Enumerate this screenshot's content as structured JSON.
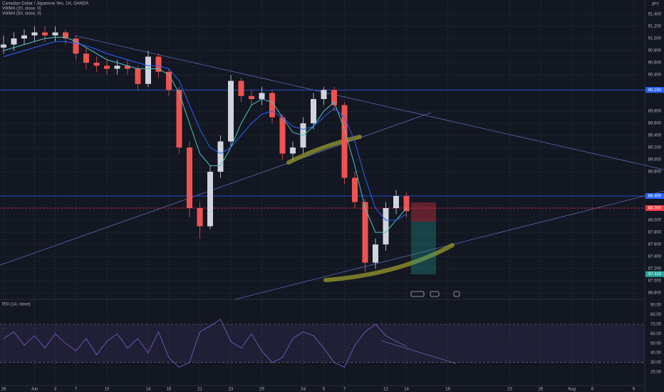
{
  "chart_data": {
    "type": "candlestick",
    "title": "Canadian Dollar / Japanese Yen, 1H, OANDA",
    "currency": "JPY",
    "indicators": [
      "VWMA (20, close, 0)",
      "VWMA (50, close, 0)"
    ],
    "categories": [
      "28",
      null,
      null,
      "Jun",
      null,
      "3",
      null,
      "7",
      null,
      null,
      "10",
      null,
      null,
      null,
      "14",
      null,
      "16",
      null,
      null,
      "21",
      null,
      null,
      "23",
      null,
      null,
      "29",
      null,
      null,
      null,
      "Jul",
      null,
      "5",
      null,
      "7",
      null,
      null,
      null,
      "12",
      null,
      "14",
      null,
      null,
      null,
      "19",
      null,
      null,
      null,
      null,
      null,
      "23",
      null,
      null,
      "26",
      null,
      null,
      "Aug",
      null,
      "6",
      null,
      null,
      null,
      "9"
    ],
    "candles": [
      {
        "open": 90.85,
        "high": 91.05,
        "low": 90.75,
        "close": 90.9
      },
      {
        "open": 90.9,
        "high": 91.1,
        "low": 90.8,
        "close": 91.0
      },
      {
        "open": 91.0,
        "high": 91.15,
        "low": 90.9,
        "close": 91.05
      },
      {
        "open": 91.05,
        "high": 91.2,
        "low": 90.95,
        "close": 91.1
      },
      {
        "open": 91.1,
        "high": 91.2,
        "low": 90.95,
        "close": 91.05
      },
      {
        "open": 91.05,
        "high": 91.2,
        "low": 90.95,
        "close": 91.1
      },
      {
        "open": 91.1,
        "high": 91.15,
        "low": 90.9,
        "close": 91.0
      },
      {
        "open": 91.0,
        "high": 91.05,
        "low": 90.65,
        "close": 90.75
      },
      {
        "open": 90.75,
        "high": 90.85,
        "low": 90.5,
        "close": 90.6
      },
      {
        "open": 90.6,
        "high": 90.7,
        "low": 90.45,
        "close": 90.55
      },
      {
        "open": 90.55,
        "high": 90.65,
        "low": 90.4,
        "close": 90.5
      },
      {
        "open": 90.5,
        "high": 90.65,
        "low": 90.4,
        "close": 90.55
      },
      {
        "open": 90.55,
        "high": 90.65,
        "low": 90.4,
        "close": 90.5
      },
      {
        "open": 90.5,
        "high": 90.55,
        "low": 90.15,
        "close": 90.25
      },
      {
        "open": 90.25,
        "high": 90.8,
        "low": 90.2,
        "close": 90.7
      },
      {
        "open": 90.7,
        "high": 90.75,
        "low": 90.35,
        "close": 90.45
      },
      {
        "open": 90.45,
        "high": 90.5,
        "low": 90.05,
        "close": 90.15
      },
      {
        "open": 90.15,
        "high": 90.2,
        "low": 89.1,
        "close": 89.2
      },
      {
        "open": 89.2,
        "high": 89.3,
        "low": 88.05,
        "close": 88.2
      },
      {
        "open": 88.2,
        "high": 88.3,
        "low": 87.7,
        "close": 87.9
      },
      {
        "open": 87.9,
        "high": 88.9,
        "low": 87.85,
        "close": 88.8
      },
      {
        "open": 88.8,
        "high": 89.4,
        "low": 88.7,
        "close": 89.3
      },
      {
        "open": 89.3,
        "high": 90.4,
        "low": 89.2,
        "close": 90.3
      },
      {
        "open": 90.3,
        "high": 90.35,
        "low": 89.95,
        "close": 90.05
      },
      {
        "open": 90.05,
        "high": 90.15,
        "low": 89.9,
        "close": 90.0
      },
      {
        "open": 90.0,
        "high": 90.2,
        "low": 89.9,
        "close": 90.1
      },
      {
        "open": 90.1,
        "high": 90.15,
        "low": 89.6,
        "close": 89.7
      },
      {
        "open": 89.7,
        "high": 89.75,
        "low": 89.0,
        "close": 89.1
      },
      {
        "open": 89.1,
        "high": 89.3,
        "low": 89.0,
        "close": 89.2
      },
      {
        "open": 89.2,
        "high": 89.7,
        "low": 89.1,
        "close": 89.6
      },
      {
        "open": 89.6,
        "high": 90.1,
        "low": 89.5,
        "close": 90.0
      },
      {
        "open": 90.0,
        "high": 90.2,
        "low": 89.9,
        "close": 90.15
      },
      {
        "open": 90.15,
        "high": 90.2,
        "low": 89.8,
        "close": 89.9
      },
      {
        "open": 89.9,
        "high": 89.95,
        "low": 88.6,
        "close": 88.7
      },
      {
        "open": 88.7,
        "high": 88.8,
        "low": 88.2,
        "close": 88.3
      },
      {
        "open": 88.3,
        "high": 88.35,
        "low": 87.15,
        "close": 87.3
      },
      {
        "open": 87.3,
        "high": 87.7,
        "low": 87.2,
        "close": 87.6
      },
      {
        "open": 87.6,
        "high": 88.3,
        "low": 87.5,
        "close": 88.2
      },
      {
        "open": 88.2,
        "high": 88.5,
        "low": 88.1,
        "close": 88.4
      },
      {
        "open": 88.4,
        "high": 88.45,
        "low": 88.05,
        "close": 88.15
      },
      null,
      null,
      null,
      null,
      null,
      null,
      null,
      null,
      null,
      null,
      null,
      null,
      null,
      null,
      null,
      null,
      null,
      null,
      null,
      null,
      null,
      null
    ],
    "series": [
      {
        "name": "VWMA (20, close, 0)",
        "color": "#4fc3c7",
        "values": [
          90.8,
          90.85,
          90.9,
          90.95,
          91.0,
          91.02,
          91.02,
          90.95,
          90.85,
          90.75,
          90.65,
          90.6,
          90.55,
          90.5,
          90.5,
          90.5,
          90.4,
          90.1,
          89.6,
          89.1,
          88.9,
          88.9,
          89.2,
          89.6,
          89.9,
          90.0,
          89.95,
          89.7,
          89.45,
          89.4,
          89.55,
          89.8,
          89.95,
          89.5,
          88.9,
          88.2,
          87.8,
          87.8,
          88.0,
          88.2,
          null,
          null,
          null,
          null,
          null,
          null,
          null,
          null,
          null,
          null,
          null,
          null,
          null,
          null,
          null,
          null,
          null,
          null,
          null,
          null,
          null,
          null
        ]
      },
      {
        "name": "VWMA (50, close, 0)",
        "color": "#2962ff",
        "values": [
          90.7,
          90.75,
          90.8,
          90.85,
          90.9,
          90.95,
          90.95,
          90.92,
          90.88,
          90.82,
          90.75,
          90.7,
          90.65,
          90.6,
          90.55,
          90.55,
          90.5,
          90.3,
          89.9,
          89.5,
          89.2,
          89.1,
          89.2,
          89.4,
          89.6,
          89.75,
          89.8,
          89.7,
          89.55,
          89.5,
          89.55,
          89.7,
          89.85,
          89.7,
          89.3,
          88.7,
          88.2,
          88.0,
          88.0,
          88.1,
          null,
          null,
          null,
          null,
          null,
          null,
          null,
          null,
          null,
          null,
          null,
          null,
          null,
          null,
          null,
          null,
          null,
          null,
          null,
          null,
          null,
          null
        ]
      }
    ],
    "up_color": "#d1d4dc",
    "down_color": "#ef5350",
    "ylim": [
      86.694,
      91.635
    ],
    "yticks": [
      {
        "value": 91.4,
        "label": "91.400"
      },
      {
        "value": 91.2,
        "label": "91.200"
      },
      {
        "value": 91.0,
        "label": "91.000"
      },
      {
        "value": 90.8,
        "label": "90.800"
      },
      {
        "value": 90.6,
        "label": "90.600"
      },
      {
        "value": 90.4,
        "label": "90.400"
      },
      {
        "value": 89.8,
        "label": "89.800"
      },
      {
        "value": 89.6,
        "label": "89.600"
      },
      {
        "value": 89.4,
        "label": "89.400"
      },
      {
        "value": 89.2,
        "label": "89.200"
      },
      {
        "value": 89.0,
        "label": "89.000"
      },
      {
        "value": 88.8,
        "label": "88.800"
      },
      {
        "value": 88.0,
        "label": "88.000"
      },
      {
        "value": 87.8,
        "label": "87.800"
      },
      {
        "value": 87.6,
        "label": "87.600"
      },
      {
        "value": 87.4,
        "label": "87.400"
      },
      {
        "value": 87.2,
        "label": "87.200"
      },
      {
        "value": 87.0,
        "label": "87.000"
      },
      {
        "value": 86.8,
        "label": "86.800"
      }
    ],
    "levels": [
      {
        "value": 90.15,
        "label": "90.150",
        "color": "#2962ff"
      },
      {
        "value": 88.4,
        "label": "88.400",
        "color": "#2962ff"
      },
      {
        "value": 88.2,
        "label": "88.200",
        "color": "#f23645"
      },
      {
        "value": 87.11,
        "label": "87.110",
        "color": "#26a69a"
      }
    ],
    "rsi": {
      "name": "RSI (14, close)",
      "color": "#7e57c2",
      "ylim": [
        5.8,
        96
      ],
      "yticks": [
        {
          "value": 90,
          "label": "90.00"
        },
        {
          "value": 80,
          "label": "80.00"
        },
        {
          "value": 70,
          "label": "70.00"
        },
        {
          "value": 60,
          "label": "60.00"
        },
        {
          "value": 50,
          "label": "50.00"
        },
        {
          "value": 40,
          "label": "40.00"
        },
        {
          "value": 30,
          "label": "30.00"
        },
        {
          "value": 20,
          "label": "20.00"
        }
      ],
      "band": [
        70,
        30
      ],
      "values": [
        55,
        62,
        48,
        58,
        45,
        60,
        50,
        42,
        55,
        38,
        52,
        60,
        45,
        55,
        40,
        62,
        35,
        25,
        30,
        62,
        68,
        75,
        52,
        45,
        60,
        42,
        30,
        35,
        55,
        62,
        58,
        45,
        30,
        25,
        48,
        62,
        70,
        58,
        52,
        47,
        null,
        null,
        null,
        null,
        null,
        null,
        null,
        null,
        null,
        null,
        null,
        null,
        null,
        null,
        null,
        null,
        null,
        null,
        null,
        null,
        null,
        null
      ]
    }
  }
}
